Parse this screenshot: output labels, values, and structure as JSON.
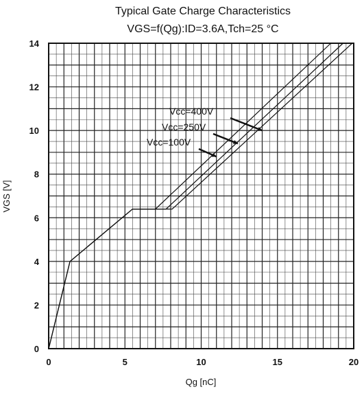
{
  "chart_data": {
    "type": "line",
    "title": "Typical Gate Charge Characteristics",
    "subtitle": "VGS=f(Qg):ID=3.6A,Tch=25 °C",
    "xlabel": "Qg [nC]",
    "ylabel": "VGS [V]",
    "xlim": [
      0,
      20
    ],
    "ylim": [
      0,
      14
    ],
    "x_ticks": [
      "0",
      "5",
      "10",
      "15",
      "20"
    ],
    "y_ticks": [
      "0",
      "2",
      "4",
      "6",
      "8",
      "10",
      "12",
      "14"
    ],
    "grid": true,
    "series": [
      {
        "name": "Vcc=100V",
        "points": [
          [
            0,
            0
          ],
          [
            1.4,
            4.0
          ],
          [
            5.5,
            6.4
          ],
          [
            8.1,
            6.4
          ],
          [
            19.9,
            14
          ]
        ]
      },
      {
        "name": "Vcc=250V",
        "points": [
          [
            0,
            0
          ],
          [
            1.4,
            4.0
          ],
          [
            5.5,
            6.4
          ],
          [
            7.7,
            6.4
          ],
          [
            19.3,
            14
          ]
        ]
      },
      {
        "name": "Vcc=400V",
        "points": [
          [
            0,
            0
          ],
          [
            1.4,
            4.0
          ],
          [
            5.5,
            6.4
          ],
          [
            7.0,
            6.4
          ],
          [
            18.5,
            14
          ]
        ]
      }
    ],
    "annotations": [
      {
        "text": "Vcc=400V",
        "arrow_to": [
          14.0,
          10.0
        ]
      },
      {
        "text": "Vcc=250V",
        "arrow_to": [
          12.4,
          9.4
        ]
      },
      {
        "text": "Vcc=100V",
        "arrow_to": [
          11.0,
          8.8
        ]
      }
    ]
  }
}
